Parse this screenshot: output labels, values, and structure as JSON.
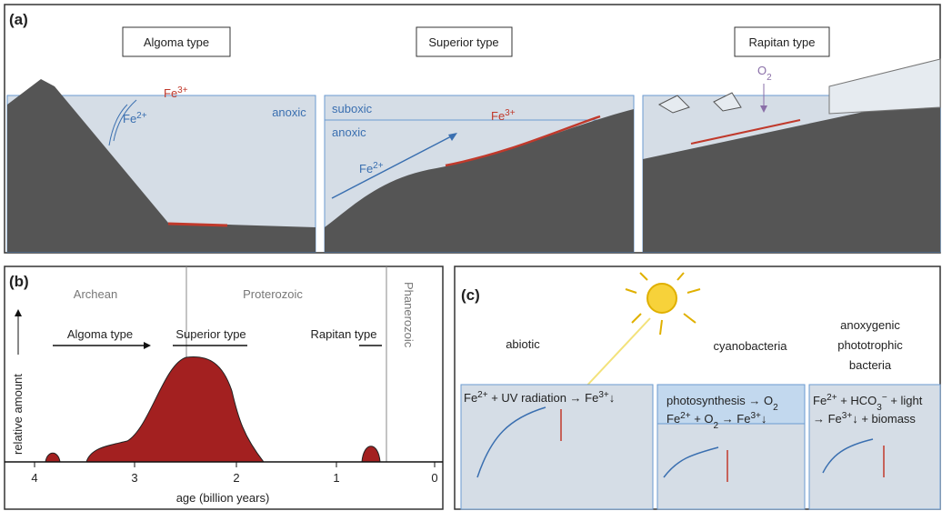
{
  "panel_a": {
    "label": "(a)",
    "algoma": {
      "title": "Algoma type",
      "anoxic": "anoxic",
      "fe3": [
        {
          "text": "Fe"
        },
        {
          "sup": "3+"
        }
      ],
      "fe2": [
        {
          "text": "Fe"
        },
        {
          "sup": "2+"
        }
      ]
    },
    "superior": {
      "title": "Superior type",
      "suboxic": "suboxic",
      "anoxic": "anoxic",
      "fe2": [
        {
          "text": "Fe"
        },
        {
          "sup": "2+"
        }
      ],
      "fe3": [
        {
          "text": "Fe"
        },
        {
          "sup": "3+"
        }
      ]
    },
    "rapitan": {
      "title": "Rapitan type",
      "o2": [
        {
          "text": "O"
        },
        {
          "sub": "2"
        }
      ]
    }
  },
  "panel_b": {
    "label": "(b)",
    "eons": [
      "Archean",
      "Proterozoic",
      "Phanerozoic"
    ],
    "types": [
      "Algoma type",
      "Superior type",
      "Rapitan type"
    ],
    "y_label": "relative amount",
    "x_label": "age (billion years)",
    "x_ticks": [
      "4",
      "3",
      "2",
      "1",
      "0"
    ]
  },
  "panel_c": {
    "label": "(c)",
    "headings": [
      "abiotic",
      "cyanobacteria",
      "anoxygenic",
      "phototrophic",
      "bacteria"
    ],
    "abiotic": [
      [
        {
          "text": "Fe"
        },
        {
          "sup": "2+"
        },
        {
          "text": " + UV radiation → Fe"
        },
        {
          "sup": "3+"
        },
        {
          "text": "↓"
        }
      ]
    ],
    "cyanobacteria": [
      [
        {
          "text": "photosynthesis → O"
        },
        {
          "sub": "2"
        }
      ],
      [
        {
          "text": "Fe"
        },
        {
          "sup": "2+"
        },
        {
          "text": " + O"
        },
        {
          "sub": "2"
        },
        {
          "text": " → Fe"
        },
        {
          "sup": "3+"
        },
        {
          "text": "↓"
        }
      ]
    ],
    "anoxygenic": [
      [
        {
          "text": "Fe"
        },
        {
          "sup": "2+"
        },
        {
          "text": " + HCO"
        },
        {
          "sub": "3"
        },
        {
          "sup": "−"
        },
        {
          "text": " + light"
        }
      ],
      [
        {
          "text": "→ Fe"
        },
        {
          "sup": "3+"
        },
        {
          "text": "↓ + biomass"
        }
      ]
    ]
  }
}
